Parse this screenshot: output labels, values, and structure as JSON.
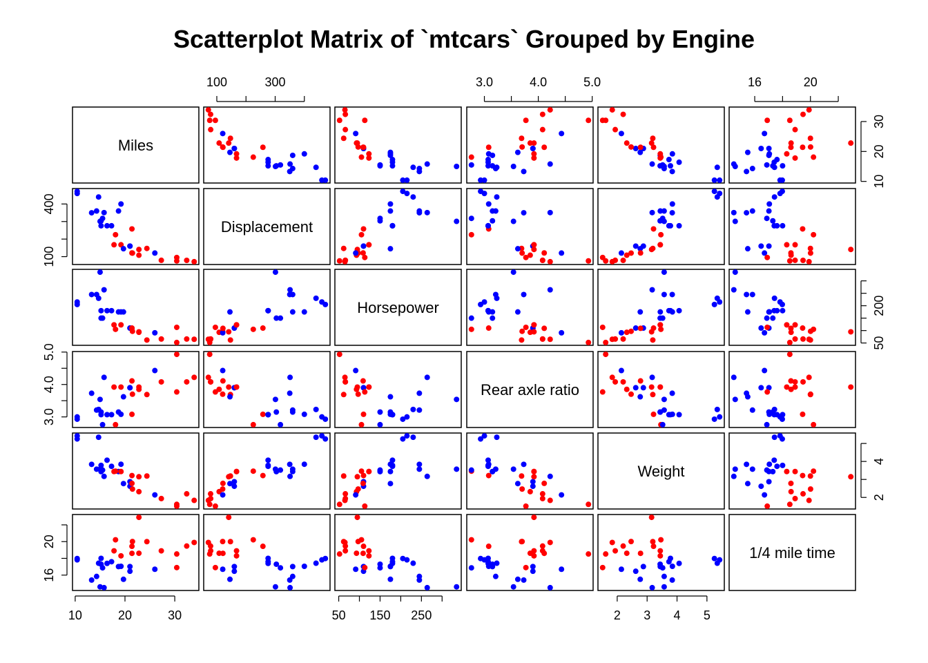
{
  "chart_data": {
    "type": "scatter",
    "title": "Scatterplot Matrix of `mtcars` Grouped by Engine",
    "variables": [
      {
        "key": "mpg",
        "label": "Miles",
        "range": [
          10.4,
          33.9
        ],
        "ticks": [
          10,
          20,
          30
        ],
        "tick_labels": [
          "10",
          "20",
          "30"
        ],
        "tick_side": "left"
      },
      {
        "key": "disp",
        "label": "Displacement",
        "range": [
          71.1,
          472
        ],
        "ticks": [
          100,
          200,
          300,
          400
        ],
        "tick_labels": [
          "100",
          "",
          "300",
          ""
        ],
        "tick_side": "left",
        "alt_labels": [
          "100",
          "",
          "",
          "400"
        ]
      },
      {
        "key": "hp",
        "label": "Horsepower",
        "range": [
          52,
          335
        ],
        "ticks": [
          50,
          100,
          150,
          200,
          250,
          300
        ],
        "tick_labels": [
          "50",
          "",
          "150",
          "",
          "250",
          ""
        ],
        "tick_side": "right",
        "alt_labels": [
          "50",
          "",
          "",
          "200",
          "",
          ""
        ]
      },
      {
        "key": "drat",
        "label": "Rear axle ratio",
        "range": [
          2.76,
          4.93
        ],
        "ticks": [
          3.0,
          3.5,
          4.0,
          4.5,
          5.0
        ],
        "tick_labels": [
          "3.0",
          "",
          "4.0",
          "",
          "5.0"
        ],
        "tick_side": "left"
      },
      {
        "key": "wt",
        "label": "Weight",
        "range": [
          1.513,
          5.424
        ],
        "ticks": [
          2,
          3,
          4,
          5
        ],
        "tick_labels": [
          "2",
          "3",
          "4",
          "5"
        ],
        "tick_side": "right",
        "alt_labels": [
          "2",
          "",
          "4",
          ""
        ]
      },
      {
        "key": "qsec",
        "label": "1/4 mile time",
        "range": [
          14.5,
          22.9
        ],
        "ticks": [
          16,
          18,
          20,
          22
        ],
        "tick_labels": [
          "16",
          "",
          "20",
          ""
        ],
        "tick_side": "left"
      }
    ],
    "groups": [
      {
        "vs": 0,
        "color": "#0000FF"
      },
      {
        "vs": 1,
        "color": "#FF0000"
      }
    ],
    "rows": [
      [
        21.0,
        160.0,
        110,
        3.9,
        2.62,
        16.46,
        0
      ],
      [
        21.0,
        160.0,
        110,
        3.9,
        2.875,
        17.02,
        0
      ],
      [
        22.8,
        108.0,
        93,
        3.85,
        2.32,
        18.61,
        1
      ],
      [
        21.4,
        258.0,
        110,
        3.08,
        3.215,
        19.44,
        1
      ],
      [
        18.7,
        360.0,
        175,
        3.15,
        3.44,
        17.02,
        0
      ],
      [
        18.1,
        225.0,
        105,
        2.76,
        3.46,
        20.22,
        1
      ],
      [
        14.3,
        360.0,
        245,
        3.21,
        3.57,
        15.84,
        0
      ],
      [
        24.4,
        146.7,
        62,
        3.69,
        3.19,
        20.0,
        1
      ],
      [
        22.8,
        140.8,
        95,
        3.92,
        3.15,
        22.9,
        1
      ],
      [
        19.2,
        167.6,
        123,
        3.92,
        3.44,
        18.3,
        1
      ],
      [
        17.8,
        167.6,
        123,
        3.92,
        3.44,
        18.9,
        1
      ],
      [
        16.4,
        275.8,
        180,
        3.07,
        4.07,
        17.4,
        0
      ],
      [
        17.3,
        275.8,
        180,
        3.07,
        3.73,
        17.6,
        0
      ],
      [
        15.2,
        275.8,
        180,
        3.07,
        3.78,
        18.0,
        0
      ],
      [
        10.4,
        472.0,
        205,
        2.93,
        5.25,
        17.98,
        0
      ],
      [
        10.4,
        460.0,
        215,
        3.0,
        5.424,
        17.82,
        0
      ],
      [
        14.7,
        440.0,
        230,
        3.23,
        5.345,
        17.42,
        0
      ],
      [
        32.4,
        78.7,
        66,
        4.08,
        2.2,
        19.47,
        1
      ],
      [
        30.4,
        75.7,
        52,
        4.93,
        1.615,
        18.52,
        1
      ],
      [
        33.9,
        71.1,
        65,
        4.22,
        1.835,
        19.9,
        1
      ],
      [
        21.5,
        120.1,
        97,
        3.7,
        2.465,
        20.01,
        1
      ],
      [
        15.5,
        318.0,
        150,
        2.76,
        3.52,
        16.87,
        0
      ],
      [
        15.2,
        304.0,
        150,
        3.15,
        3.435,
        17.3,
        0
      ],
      [
        13.3,
        350.0,
        245,
        3.73,
        3.84,
        15.41,
        0
      ],
      [
        19.2,
        400.0,
        175,
        3.08,
        3.845,
        17.05,
        0
      ],
      [
        27.3,
        79.0,
        66,
        4.08,
        1.935,
        18.9,
        1
      ],
      [
        26.0,
        120.3,
        91,
        4.43,
        2.14,
        16.7,
        0
      ],
      [
        30.4,
        95.1,
        113,
        3.77,
        1.513,
        16.9,
        1
      ],
      [
        15.8,
        351.0,
        264,
        4.22,
        3.17,
        14.5,
        0
      ],
      [
        19.7,
        145.0,
        175,
        3.62,
        2.77,
        15.5,
        0
      ],
      [
        15.0,
        301.0,
        335,
        3.54,
        3.57,
        14.6,
        0
      ],
      [
        21.4,
        121.0,
        109,
        4.11,
        2.78,
        18.6,
        1
      ]
    ]
  }
}
